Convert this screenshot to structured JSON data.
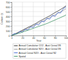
{
  "chart_data": {
    "type": "line",
    "x_label": "Year",
    "y_label": "Carbon (t)",
    "x": [
      0,
      5,
      10,
      15,
      20,
      25,
      30,
      35,
      40,
      45,
      50,
      55,
      60,
      65,
      70,
      75,
      80,
      85,
      90,
      95,
      100
    ],
    "series": [
      {
        "name": "Annual Cumulative CO2 - Aust Cereal 3S",
        "color": "#222222",
        "values": [
          0,
          25,
          55,
          80,
          110,
          140,
          170,
          195,
          225,
          255,
          290,
          320,
          350,
          380,
          410,
          445,
          480,
          510,
          545,
          580,
          620
        ]
      },
      {
        "name": "Annual Cumulative N2O - Aust Cereal 3S",
        "color": "#8c8c8c",
        "values": [
          0,
          20,
          45,
          70,
          95,
          120,
          150,
          175,
          200,
          230,
          260,
          285,
          315,
          345,
          375,
          405,
          435,
          465,
          495,
          525,
          560
        ]
      },
      {
        "name": "Annual Cereal N2O - Aust Cereal N2",
        "color": "#3a5fcd",
        "values": [
          0,
          40,
          30,
          85,
          70,
          130,
          115,
          180,
          165,
          240,
          220,
          300,
          285,
          360,
          340,
          420,
          400,
          480,
          470,
          560,
          600
        ]
      },
      {
        "name": "Spatial",
        "color": "#2e8b57",
        "values": [
          0,
          15,
          35,
          50,
          70,
          90,
          110,
          130,
          150,
          170,
          190,
          210,
          230,
          250,
          275,
          300,
          325,
          350,
          375,
          400,
          430
        ]
      }
    ],
    "xlim": [
      0,
      100
    ],
    "xticks": [
      0,
      20,
      40,
      60,
      80,
      100
    ],
    "ylim": [
      0,
      700
    ],
    "yticks": [
      0,
      100,
      200,
      300,
      400,
      500,
      600,
      700
    ],
    "grid": true,
    "legend": "bottom"
  }
}
